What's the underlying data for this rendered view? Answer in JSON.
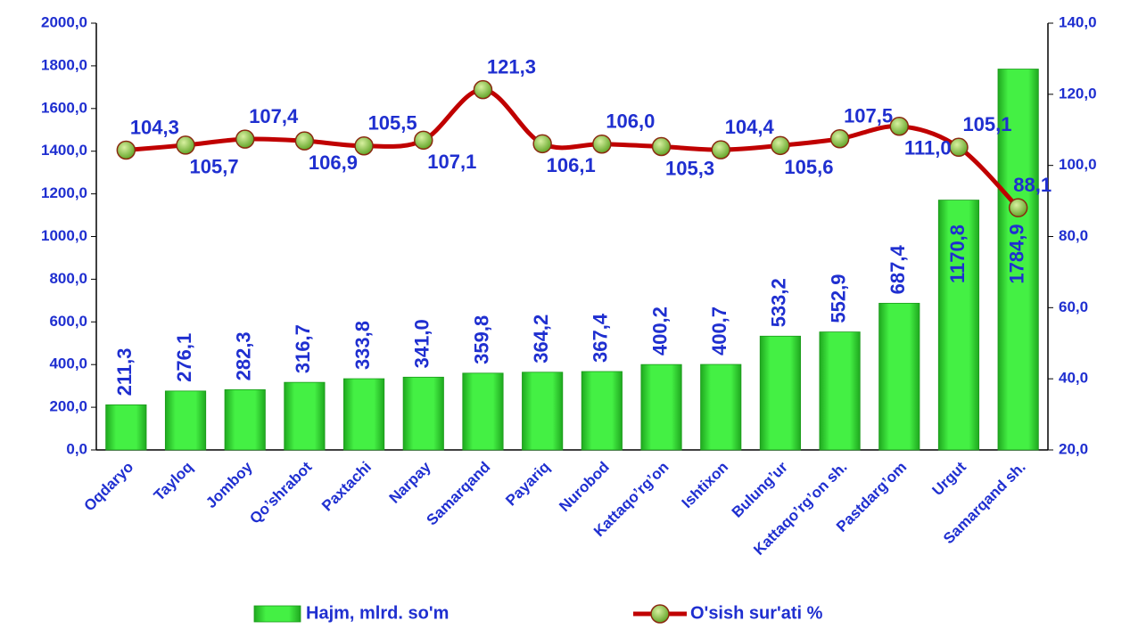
{
  "chart_data": {
    "type": "bar-line",
    "categories": [
      "Oqdaryo",
      "Tayloq",
      "Jomboy",
      "Qo’shrabot",
      "Paxtachi",
      "Narpay",
      "Samarqand",
      "Payariq",
      "Nurobod",
      "Kattaqo’rg’on",
      "Ishtixon",
      "Bulung’ur",
      "Kattaqo’rg’on sh.",
      "Pastdarg’om",
      "Urgut",
      "Samarqand sh."
    ],
    "series": [
      {
        "name": "Hajm, mlrd. so'm",
        "type": "bar",
        "color": "#33ee33",
        "values": [
          211.3,
          276.1,
          282.3,
          316.7,
          333.8,
          341.0,
          359.8,
          364.2,
          367.4,
          400.2,
          400.7,
          533.2,
          552.9,
          687.4,
          1170.8,
          1784.9
        ],
        "value_labels": [
          "211,3",
          "276,1",
          "282,3",
          "316,7",
          "333,8",
          "341,0",
          "359,8",
          "364,2",
          "367,4",
          "400,2",
          "400,7",
          "533,2",
          "552,9",
          "687,4",
          "1170,8",
          "1784,9"
        ]
      },
      {
        "name": "O'sish sur'ati %",
        "type": "line",
        "axis": "y2",
        "color": "#c00000",
        "marker_color": "#66cc33",
        "values": [
          104.3,
          105.7,
          107.4,
          106.9,
          105.5,
          107.1,
          121.3,
          106.1,
          106.0,
          105.3,
          104.4,
          105.6,
          107.5,
          111.0,
          105.1,
          88.1
        ],
        "value_labels": [
          "104,3",
          "105,7",
          "107,4",
          "106,9",
          "105,5",
          "107,1",
          "121,3",
          "106,1",
          "106,0",
          "105,3",
          "104,4",
          "105,6",
          "107,5",
          "111,0",
          "105,1",
          "88,1"
        ]
      }
    ],
    "ylim": [
      0,
      2000
    ],
    "yticks": [
      {
        "value": 0,
        "label": "0,0"
      },
      {
        "value": 200,
        "label": "200,0"
      },
      {
        "value": 400,
        "label": "400,0"
      },
      {
        "value": 600,
        "label": "600,0"
      },
      {
        "value": 800,
        "label": "800,0"
      },
      {
        "value": 1000,
        "label": "1000,0"
      },
      {
        "value": 1200,
        "label": "1200,0"
      },
      {
        "value": 1400,
        "label": "1400,0"
      },
      {
        "value": 1600,
        "label": "1600,0"
      },
      {
        "value": 1800,
        "label": "1800,0"
      },
      {
        "value": 2000,
        "label": "2000,0"
      }
    ],
    "y2lim": [
      20,
      140
    ],
    "y2ticks": [
      {
        "value": 20,
        "label": "20,0"
      },
      {
        "value": 40,
        "label": "40,0"
      },
      {
        "value": 60,
        "label": "60,0"
      },
      {
        "value": 80,
        "label": "80,0"
      },
      {
        "value": 100,
        "label": "100,0"
      },
      {
        "value": 120,
        "label": "120,0"
      },
      {
        "value": 140,
        "label": "140,0"
      }
    ],
    "legend": "bottom"
  }
}
